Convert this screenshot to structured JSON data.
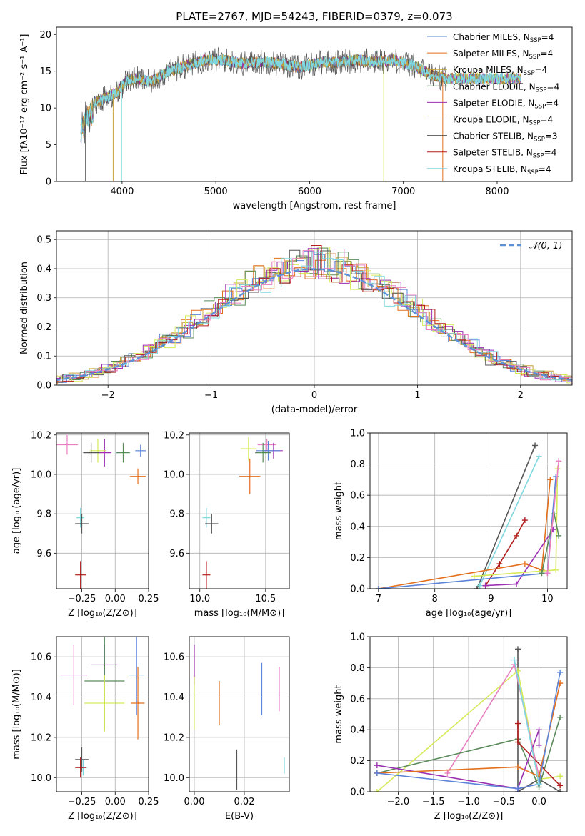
{
  "colors": {
    "Chabrier MILES": "#5b84d8",
    "Salpeter MILES": "#e36f1c",
    "Kroupa MILES": "#c9a33a",
    "Chabrier ELODIE": "#5a8a5a",
    "Salpeter ELODIE": "#9b2fb2",
    "Kroupa ELODIE": "#d6ea5a",
    "Chabrier STELIB": "#555555",
    "Salpeter STELIB": "#b31d1d",
    "Kroupa STELIB": "#7fd8e0",
    "Pink": "#e87fc0",
    "Gauss": "#5b8fd6"
  },
  "chart_data": [
    {
      "type": "line",
      "title": "PLATE=2767, MJD=54243, FIBERID=0379, z=0.073",
      "xlabel": "wavelength [Angstrom, rest frame]",
      "ylabel": "Flux [fλ10⁻¹⁷ erg cm⁻² s⁻¹ A⁻¹]",
      "xlim": [
        3300,
        8800
      ],
      "ylim": [
        0,
        21
      ],
      "xticks": [
        "4000",
        "5000",
        "6000",
        "7000",
        "8000"
      ],
      "yticks": [
        "0",
        "5",
        "10",
        "15",
        "20"
      ],
      "legend_position": "top-right",
      "legend": [
        {
          "name": "Chabrier MILES, N",
          "sub": "SSP",
          "tail": "=4",
          "color_key": "Chabrier MILES"
        },
        {
          "name": "Salpeter MILES, N",
          "sub": "SSP",
          "tail": "=4",
          "color_key": "Salpeter MILES"
        },
        {
          "name": "Kroupa MILES, N",
          "sub": "SSP",
          "tail": "=4",
          "color_key": "Kroupa MILES"
        },
        {
          "name": "Chabrier ELODIE, N",
          "sub": "SSP",
          "tail": "=4",
          "color_key": "Chabrier ELODIE"
        },
        {
          "name": "Salpeter ELODIE, N",
          "sub": "SSP",
          "tail": "=4",
          "color_key": "Salpeter ELODIE"
        },
        {
          "name": "Kroupa ELODIE, N",
          "sub": "SSP",
          "tail": "=4",
          "color_key": "Kroupa ELODIE"
        },
        {
          "name": "Chabrier STELIB, N",
          "sub": "SSP",
          "tail": "=3",
          "color_key": "Chabrier STELIB"
        },
        {
          "name": "Salpeter STELIB, N",
          "sub": "SSP",
          "tail": "=4",
          "color_key": "Salpeter STELIB"
        },
        {
          "name": "Kroupa STELIB, N",
          "sub": "SSP",
          "tail": "=4",
          "color_key": "Kroupa STELIB"
        }
      ],
      "spectrum_envelope": {
        "x": [
          3560,
          3650,
          3750,
          3850,
          3950,
          4050,
          4150,
          4300,
          4500,
          4700,
          4900,
          5100,
          5300,
          5500,
          5700,
          5900,
          6100,
          6300,
          6500,
          6700,
          6900,
          7100,
          7300,
          7450
        ],
        "y": [
          8.0,
          10.5,
          11.0,
          11.5,
          12.2,
          13.8,
          14.0,
          13.5,
          15.0,
          15.8,
          16.6,
          16.5,
          16.0,
          16.3,
          16.0,
          15.5,
          16.2,
          16.2,
          16.5,
          16.3,
          16.5,
          15.8,
          14.5,
          14.0
        ]
      }
    },
    {
      "type": "histogram",
      "xlabel": "(data-model)/error",
      "ylabel": "Normed distribution",
      "xlim": [
        -2.5,
        2.5
      ],
      "ylim": [
        0,
        0.53
      ],
      "xticks": [
        "−2",
        "−1",
        "0",
        "1",
        "2"
      ],
      "yticks": [
        "0.0",
        "0.1",
        "0.2",
        "0.3",
        "0.4",
        "0.5"
      ],
      "grid": true,
      "legend_position": "top-right",
      "gauss_label": "𝒩(0, 1)",
      "bin_width": 0.1,
      "series_colors": [
        "Chabrier MILES",
        "Salpeter MILES",
        "Kroupa MILES",
        "Chabrier ELODIE",
        "Salpeter ELODIE",
        "Kroupa ELODIE",
        "Chabrier STELIB",
        "Salpeter STELIB",
        "Kroupa STELIB",
        "Pink"
      ]
    },
    {
      "type": "scatter",
      "xlabel": "Z [log₁₀(Z/Z⊙)]",
      "ylabel": "age [log₁₀(age/yr)]",
      "xlim": [
        -0.44,
        0.25
      ],
      "ylim": [
        9.42,
        10.21
      ],
      "xticks": [
        "−0.25",
        "0.00",
        "0.25"
      ],
      "yticks": [
        "9.6",
        "9.8",
        "10.0",
        "10.2"
      ],
      "points": [
        {
          "c": "Pink",
          "x": -0.36,
          "y": 10.15,
          "xe": 0.08,
          "ye": 0.05
        },
        {
          "c": "Salpeter ELODIE",
          "x": -0.08,
          "y": 10.11,
          "xe": 0.05,
          "ye": 0.07
        },
        {
          "c": "Chabrier MILES",
          "x": 0.19,
          "y": 10.12,
          "xe": 0.04,
          "ye": 0.03
        },
        {
          "c": "Chabrier ELODIE",
          "x": 0.06,
          "y": 10.11,
          "xe": 0.05,
          "ye": 0.05
        },
        {
          "c": "Kroupa ELODIE",
          "x": -0.13,
          "y": 10.12,
          "xe": 0.06,
          "ye": 0.06
        },
        {
          "c": "Chabrier STELIB",
          "x": -0.18,
          "y": 10.11,
          "xe": 0.06,
          "ye": 0.05
        },
        {
          "c": "Salpeter MILES",
          "x": 0.17,
          "y": 9.99,
          "xe": 0.06,
          "ye": 0.04
        },
        {
          "c": "Kroupa STELIB",
          "x": -0.26,
          "y": 9.78,
          "xe": 0.03,
          "ye": 0.05
        },
        {
          "c": "Chabrier STELIB",
          "x": -0.25,
          "y": 9.75,
          "xe": 0.05,
          "ye": 0.05
        },
        {
          "c": "Salpeter STELIB",
          "x": -0.26,
          "y": 9.49,
          "xe": 0.04,
          "ye": 0.07
        }
      ]
    },
    {
      "type": "scatter",
      "xlabel": "mass [log₁₀(M/M⊙)]",
      "xlim": [
        9.92,
        10.68
      ],
      "ylim": [
        9.42,
        10.21
      ],
      "xticks": [
        "10.0",
        "10.5"
      ],
      "yticks": [
        "9.6",
        "9.8",
        "10.0",
        "10.2"
      ],
      "points": [
        {
          "c": "Pink",
          "x": 10.51,
          "y": 10.15,
          "xe": 0.07,
          "ye": 0.03
        },
        {
          "c": "Salpeter ELODIE",
          "x": 10.56,
          "y": 10.12,
          "xe": 0.07,
          "ye": 0.04
        },
        {
          "c": "Chabrier MILES",
          "x": 10.52,
          "y": 10.12,
          "xe": 0.09,
          "ye": 0.05
        },
        {
          "c": "Chabrier ELODIE",
          "x": 10.48,
          "y": 10.11,
          "xe": 0.06,
          "ye": 0.05
        },
        {
          "c": "Kroupa ELODIE",
          "x": 10.37,
          "y": 10.13,
          "xe": 0.06,
          "ye": 0.06
        },
        {
          "c": "Salpeter MILES",
          "x": 10.38,
          "y": 9.99,
          "xe": 0.08,
          "ye": 0.09
        },
        {
          "c": "Kroupa STELIB",
          "x": 10.05,
          "y": 9.78,
          "xe": 0.03,
          "ye": 0.05
        },
        {
          "c": "Chabrier STELIB",
          "x": 10.09,
          "y": 9.75,
          "xe": 0.05,
          "ye": 0.05
        },
        {
          "c": "Salpeter STELIB",
          "x": 10.05,
          "y": 9.49,
          "xe": 0.03,
          "ye": 0.07
        }
      ]
    },
    {
      "type": "line",
      "xlabel": "age [log₁₀(age/yr)]",
      "ylabel": "mass weight",
      "xlim": [
        6.85,
        10.35
      ],
      "ylim": [
        0,
        1
      ],
      "xticks": [
        "7",
        "8",
        "9",
        "10"
      ],
      "yticks": [
        "0.0",
        "0.2",
        "0.4",
        "0.6",
        "0.8",
        "1.0"
      ],
      "grid": true,
      "series": [
        {
          "c": "Chabrier STELIB",
          "x": [
            8.75,
            9.78
          ],
          "y": [
            0.0,
            0.92
          ]
        },
        {
          "c": "Kroupa STELIB",
          "x": [
            8.8,
            9.85
          ],
          "y": [
            0.02,
            0.85
          ]
        },
        {
          "c": "Salpeter MILES",
          "x": [
            7.0,
            9.6,
            9.9,
            10.05
          ],
          "y": [
            0.0,
            0.16,
            0.12,
            0.7
          ]
        },
        {
          "c": "Salpeter STELIB",
          "x": [
            8.9,
            9.15,
            9.45,
            9.6
          ],
          "y": [
            0.02,
            0.16,
            0.34,
            0.44
          ]
        },
        {
          "c": "Salpeter ELODIE",
          "x": [
            8.9,
            9.45,
            10.1
          ],
          "y": [
            0.02,
            0.03,
            0.38
          ]
        },
        {
          "c": "Chabrier MILES",
          "x": [
            7.0,
            10.0,
            10.15
          ],
          "y": [
            0.0,
            0.1,
            0.72
          ]
        },
        {
          "c": "Kroupa ELODIE",
          "x": [
            8.7,
            10.15,
            10.18
          ],
          "y": [
            0.08,
            0.12,
            0.77
          ]
        },
        {
          "c": "Chabrier ELODIE",
          "x": [
            9.9,
            10.12,
            10.2
          ],
          "y": [
            0.1,
            0.48,
            0.34
          ]
        },
        {
          "c": "Pink",
          "x": [
            10.0,
            10.2
          ],
          "y": [
            0.1,
            0.82
          ]
        }
      ]
    },
    {
      "type": "scatter",
      "xlabel": "Z [log₁₀(Z/Z⊙)]",
      "ylabel": "mass [log₁₀(M/M⊙)]",
      "xlim": [
        -0.44,
        0.25
      ],
      "ylim": [
        9.93,
        10.7
      ],
      "xticks": [
        "−0.25",
        "0.00",
        "0.25"
      ],
      "yticks": [
        "10.0",
        "10.2",
        "10.4",
        "10.6"
      ],
      "points": [
        {
          "c": "Pink",
          "x": -0.31,
          "y": 10.51,
          "xe": 0.1,
          "ye": 0.15
        },
        {
          "c": "Salpeter ELODIE",
          "x": -0.08,
          "y": 10.56,
          "xe": 0.1,
          "ye": 0.1
        },
        {
          "c": "Chabrier MILES",
          "x": 0.16,
          "y": 10.51,
          "xe": 0.06,
          "ye": 0.2
        },
        {
          "c": "Chabrier ELODIE",
          "x": -0.08,
          "y": 10.48,
          "xe": 0.15,
          "ye": 0.25
        },
        {
          "c": "Kroupa ELODIE",
          "x": -0.08,
          "y": 10.37,
          "xe": 0.15,
          "ye": 0.14
        },
        {
          "c": "Salpeter MILES",
          "x": 0.17,
          "y": 10.37,
          "xe": 0.05,
          "ye": 0.18
        },
        {
          "c": "Kroupa STELIB",
          "x": -0.24,
          "y": 10.05,
          "xe": 0.03,
          "ye": 0.04
        },
        {
          "c": "Chabrier STELIB",
          "x": -0.25,
          "y": 10.09,
          "xe": 0.05,
          "ye": 0.06
        },
        {
          "c": "Salpeter STELIB",
          "x": -0.26,
          "y": 10.05,
          "xe": 0.04,
          "ye": 0.05
        }
      ]
    },
    {
      "type": "scatter",
      "xlabel": "E(B-V)",
      "xlim": [
        -0.002,
        0.038
      ],
      "ylim": [
        9.93,
        10.7
      ],
      "xticks": [
        "0.00",
        "0.02"
      ],
      "yticks": [
        "10.0",
        "10.2",
        "10.4",
        "10.6"
      ],
      "points": [
        {
          "c": "Salpeter ELODIE",
          "x": 0.0,
          "y": 10.56,
          "xe": 0,
          "ye": 0.1
        },
        {
          "c": "Kroupa ELODIE",
          "x": 0.0,
          "y": 10.37,
          "xe": 0,
          "ye": 0.13
        },
        {
          "c": "Salpeter MILES",
          "x": 0.01,
          "y": 10.37,
          "xe": 0,
          "ye": 0.11
        },
        {
          "c": "Chabrier STELIB",
          "x": 0.017,
          "y": 10.04,
          "xe": 0,
          "ye": 0.1
        },
        {
          "c": "Chabrier MILES",
          "x": 0.027,
          "y": 10.44,
          "xe": 0,
          "ye": 0.13
        },
        {
          "c": "Pink",
          "x": 0.034,
          "y": 10.44,
          "xe": 0,
          "ye": 0.11
        },
        {
          "c": "Kroupa STELIB",
          "x": 0.036,
          "y": 10.06,
          "xe": 0,
          "ye": 0.04
        }
      ]
    },
    {
      "type": "line",
      "xlabel": "Z [log₁₀(Z/Z⊙)]",
      "ylabel": "mass weight",
      "xlim": [
        -2.4,
        0.4
      ],
      "ylim": [
        0,
        1
      ],
      "xticks": [
        "−2.0",
        "−1.5",
        "−1.0",
        "−0.5",
        "0.0"
      ],
      "yticks": [
        "0.0",
        "0.2",
        "0.4",
        "0.6",
        "0.8",
        "1.0"
      ],
      "grid": true,
      "series": [
        {
          "c": "Chabrier STELIB",
          "x": [
            -0.3,
            -0.3,
            0.0,
            0.3
          ],
          "y": [
            0.92,
            0.0,
            0.08,
            0.0
          ]
        },
        {
          "c": "Kroupa ELODIE",
          "x": [
            -2.3,
            -0.3,
            0.0,
            0.3
          ],
          "y": [
            0.0,
            0.78,
            0.08,
            0.1
          ]
        },
        {
          "c": "Pink",
          "x": [
            -1.3,
            -0.35,
            0.0
          ],
          "y": [
            0.12,
            0.82,
            0.1
          ]
        },
        {
          "c": "Chabrier ELODIE",
          "x": [
            -2.3,
            -0.3,
            0.0,
            0.3
          ],
          "y": [
            0.12,
            0.34,
            0.03,
            0.48
          ]
        },
        {
          "c": "Salpeter STELIB",
          "x": [
            -0.3,
            -0.3,
            0.3
          ],
          "y": [
            0.44,
            0.32,
            0.04
          ]
        },
        {
          "c": "Salpeter ELODIE",
          "x": [
            -2.3,
            -0.3,
            0.0,
            0.0
          ],
          "y": [
            0.17,
            0.02,
            0.4,
            0.3
          ]
        },
        {
          "c": "Salpeter MILES",
          "x": [
            -2.3,
            -0.3,
            0.0,
            0.3
          ],
          "y": [
            0.12,
            0.16,
            0.1,
            0.7
          ]
        },
        {
          "c": "Chabrier MILES",
          "x": [
            -2.3,
            -0.3,
            0.0,
            0.3
          ],
          "y": [
            0.12,
            0.02,
            0.05,
            0.77
          ]
        },
        {
          "c": "Kroupa STELIB",
          "x": [
            -0.35,
            0.0
          ],
          "y": [
            0.85,
            0.05
          ]
        }
      ]
    }
  ]
}
